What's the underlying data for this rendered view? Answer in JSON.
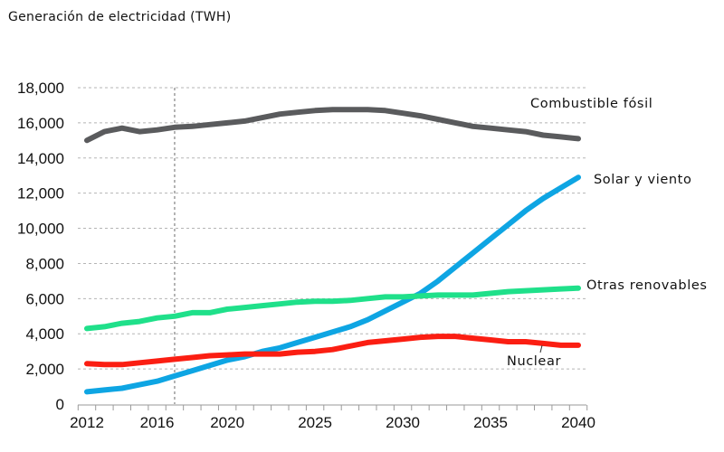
{
  "title": "Generación de electricidad (TWH)",
  "chart_data": {
    "type": "line",
    "title": "Generación de electricidad (TWH)",
    "xlabel": "",
    "ylabel": "",
    "xlim": [
      2012,
      2040
    ],
    "ylim": [
      0,
      18000
    ],
    "x_ticks": [
      "2012",
      "2016",
      "2020",
      "2025",
      "2030",
      "2035",
      "2040"
    ],
    "y_ticks": [
      "0",
      "2,000",
      "4,000",
      "6,000",
      "8,000",
      "10,000",
      "12,000",
      "14,000",
      "16,000",
      "18,000"
    ],
    "grid": "horizontal dashed",
    "reference_line_x": 2017,
    "x": [
      2012,
      2013,
      2014,
      2015,
      2016,
      2017,
      2018,
      2019,
      2020,
      2021,
      2022,
      2023,
      2024,
      2025,
      2026,
      2027,
      2028,
      2029,
      2030,
      2031,
      2032,
      2033,
      2034,
      2035,
      2036,
      2037,
      2038,
      2039,
      2040
    ],
    "series": [
      {
        "name": "Combustible fósil",
        "color": "#5a5b5d",
        "values": [
          15000,
          15500,
          15700,
          15500,
          15600,
          15750,
          15800,
          15900,
          16000,
          16100,
          16300,
          16500,
          16600,
          16700,
          16750,
          16750,
          16750,
          16700,
          16550,
          16400,
          16200,
          16000,
          15800,
          15700,
          15600,
          15500,
          15300,
          15200,
          15100
        ]
      },
      {
        "name": "Solar y viento",
        "color": "#0ea5e3",
        "values": [
          700,
          800,
          900,
          1100,
          1300,
          1600,
          1900,
          2200,
          2500,
          2700,
          3000,
          3200,
          3500,
          3800,
          4100,
          4400,
          4800,
          5300,
          5800,
          6300,
          7000,
          7800,
          8600,
          9400,
          10200,
          11000,
          11700,
          12300,
          12900
        ]
      },
      {
        "name": "Otras renovables",
        "color": "#1fe08a",
        "values": [
          4300,
          4400,
          4600,
          4700,
          4900,
          5000,
          5200,
          5200,
          5400,
          5500,
          5600,
          5700,
          5800,
          5850,
          5850,
          5900,
          6000,
          6100,
          6100,
          6150,
          6200,
          6200,
          6200,
          6300,
          6400,
          6450,
          6500,
          6550,
          6600
        ]
      },
      {
        "name": "Nuclear",
        "color": "#fb1e12",
        "values": [
          2300,
          2250,
          2250,
          2350,
          2450,
          2550,
          2650,
          2750,
          2800,
          2850,
          2850,
          2850,
          2950,
          3000,
          3100,
          3300,
          3500,
          3600,
          3700,
          3800,
          3850,
          3850,
          3750,
          3650,
          3550,
          3550,
          3450,
          3350,
          3350
        ]
      }
    ]
  }
}
